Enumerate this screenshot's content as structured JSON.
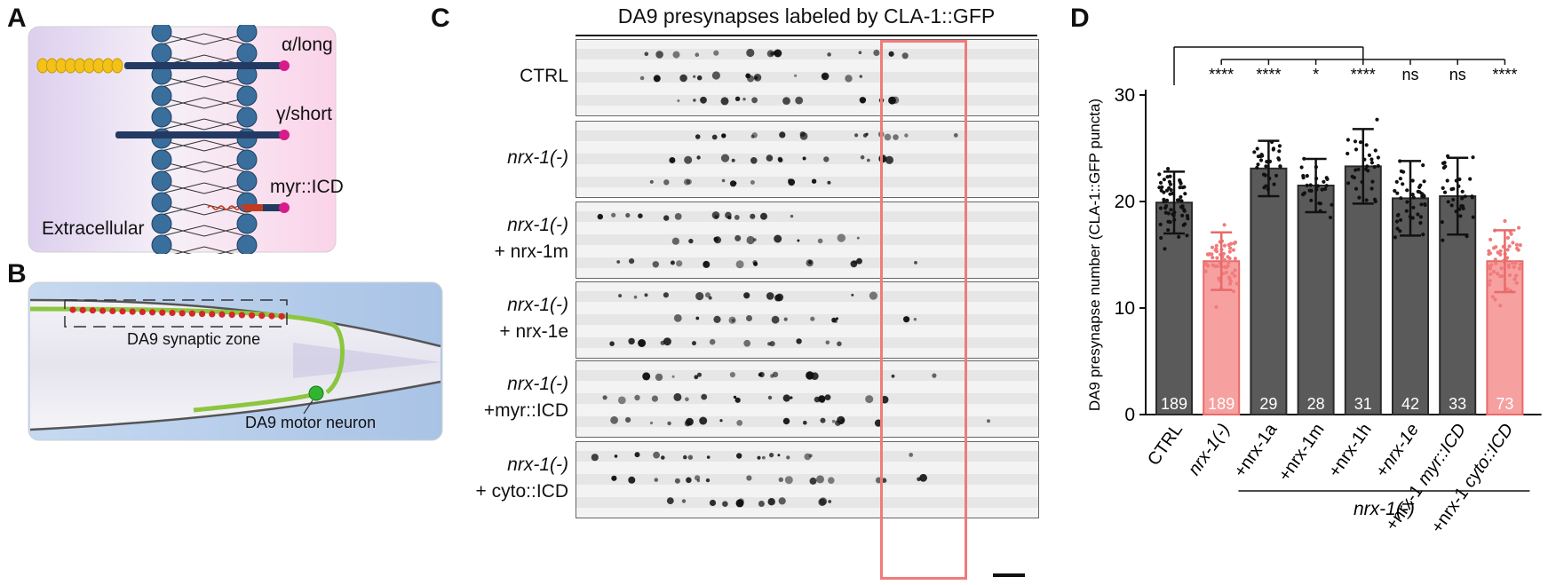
{
  "panels": {
    "a": {
      "letter": "A",
      "labels": {
        "alpha": "α/long",
        "gamma": "γ/short",
        "myr": "myr::ICD",
        "extracellular": "Extracellular"
      },
      "colors": {
        "membrane_bead": "#3a6e9c",
        "rod": "#233a63",
        "cap": "#d81b8b",
        "signal_bead": "#f2c21a",
        "background_left": "#ddd0ee",
        "background_right": "#fbd6ea",
        "red_linker": "#c43a1e"
      }
    },
    "b": {
      "letter": "B",
      "labels": {
        "zone": "DA9 synaptic zone",
        "neuron": "DA9 motor neuron"
      },
      "colors": {
        "neuron": "#8cc63f",
        "puncta": "#d62828",
        "soma": "#2fb52f"
      }
    },
    "c": {
      "letter": "C",
      "title": "DA9 presynapses labeled by CLA-1::GFP",
      "rows": [
        {
          "line1": "CTRL",
          "line2": "",
          "italic1": false
        },
        {
          "line1": "nrx-1(-)",
          "line2": "",
          "italic1": true
        },
        {
          "line1": "nrx-1(-)",
          "line2": "+ nrx-1m",
          "italic1": true
        },
        {
          "line1": "nrx-1(-)",
          "line2": "+ nrx-1e",
          "italic1": true
        },
        {
          "line1": "nrx-1(-)",
          "line2": "+myr::ICD",
          "italic1": true
        },
        {
          "line1": "nrx-1(-)",
          "line2": "+ cyto::ICD",
          "italic1": true
        }
      ],
      "colors": {
        "highlight_box": "#f07b7b"
      }
    },
    "d": {
      "letter": "D",
      "nrx_bracket_label": "nrx-1(-)"
    }
  },
  "chart_data": {
    "type": "bar",
    "ylabel": "DA9 presynapse number (CLA-1::GFP puncta)",
    "ylim": [
      0,
      30
    ],
    "yticks": [
      0,
      10,
      20,
      30
    ],
    "categories": [
      "CTRL",
      "nrx-1(-)",
      "+nrx-1a",
      "+nrx-1m",
      "+nrx-1h",
      "+nrx-1e",
      "+nrx-1 myr::ICD",
      "+nrx-1 cyto::ICD"
    ],
    "values": [
      19.9,
      14.4,
      23.1,
      21.5,
      23.3,
      20.3,
      20.5,
      14.4
    ],
    "sd": [
      2.9,
      2.7,
      2.6,
      2.5,
      3.5,
      3.5,
      3.6,
      2.9
    ],
    "n": [
      "189",
      "189",
      "29",
      "28",
      "31",
      "42",
      "33",
      "73"
    ],
    "significance": [
      "",
      "****",
      "****",
      "*",
      "****",
      "ns",
      "ns",
      "****"
    ],
    "colors": [
      "#5a5a5a",
      "#f6a0a0",
      "#5a5a5a",
      "#5a5a5a",
      "#5a5a5a",
      "#5a5a5a",
      "#5a5a5a",
      "#f6a0a0"
    ],
    "edge_colors": [
      "#2a2a2a",
      "#e86a6a",
      "#2a2a2a",
      "#2a2a2a",
      "#2a2a2a",
      "#2a2a2a",
      "#2a2a2a",
      "#e86a6a"
    ]
  }
}
